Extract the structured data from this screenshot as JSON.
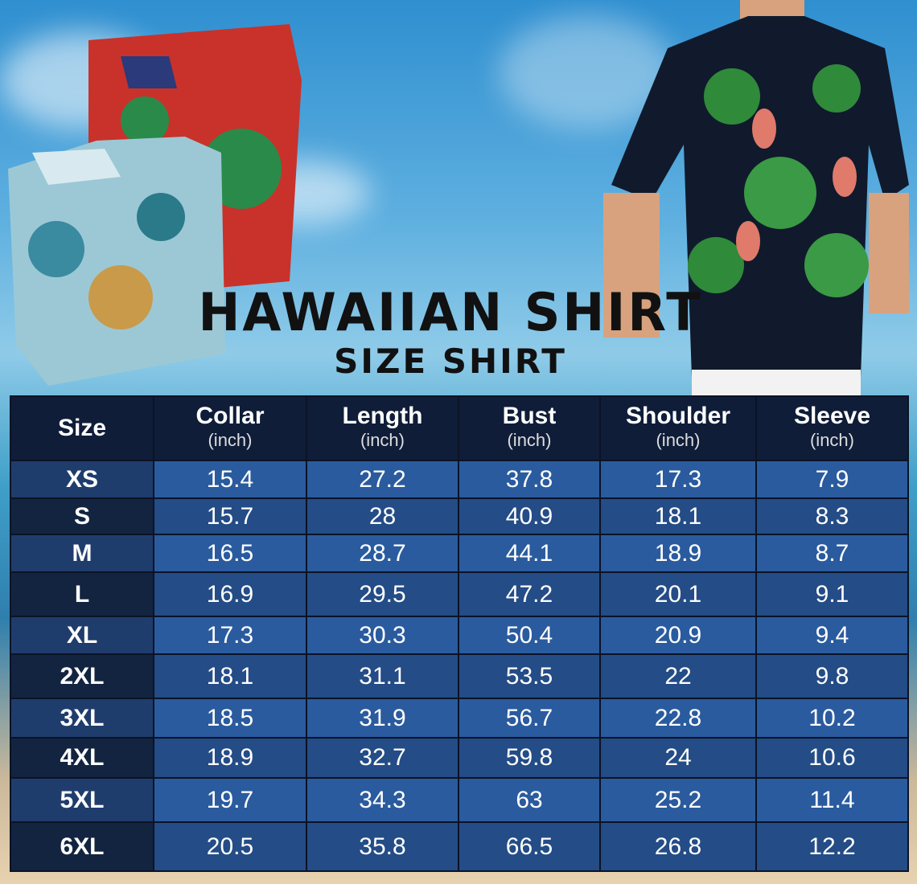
{
  "title": "HAWAIIAN SHIRT",
  "subtitle": "SIZE SHIRT",
  "colors": {
    "header_bg": "#0f1d38",
    "row_light": "#2a5b9e",
    "row_dark": "#244c86",
    "text": "#ffffff"
  },
  "table": {
    "headers": [
      {
        "label": "Size",
        "unit": ""
      },
      {
        "label": "Collar",
        "unit": "(inch)"
      },
      {
        "label": "Length",
        "unit": "(inch)"
      },
      {
        "label": "Bust",
        "unit": "(inch)"
      },
      {
        "label": "Shoulder",
        "unit": "(inch)"
      },
      {
        "label": "Sleeve",
        "unit": "(inch)"
      }
    ],
    "rows": [
      [
        "XS",
        "15.4",
        "27.2",
        "37.8",
        "17.3",
        "7.9"
      ],
      [
        "S",
        "15.7",
        "28",
        "40.9",
        "18.1",
        "8.3"
      ],
      [
        "M",
        "16.5",
        "28.7",
        "44.1",
        "18.9",
        "8.7"
      ],
      [
        "L",
        "16.9",
        "29.5",
        "47.2",
        "20.1",
        "9.1"
      ],
      [
        "XL",
        "17.3",
        "30.3",
        "50.4",
        "20.9",
        "9.4"
      ],
      [
        "2XL",
        "18.1",
        "31.1",
        "53.5",
        "22",
        "9.8"
      ],
      [
        "3XL",
        "18.5",
        "31.9",
        "56.7",
        "22.8",
        "10.2"
      ],
      [
        "4XL",
        "18.9",
        "32.7",
        "59.8",
        "24",
        "10.6"
      ],
      [
        "5XL",
        "19.7",
        "34.3",
        "63",
        "25.2",
        "11.4"
      ],
      [
        "6XL",
        "20.5",
        "35.8",
        "66.5",
        "26.8",
        "12.2"
      ]
    ]
  }
}
